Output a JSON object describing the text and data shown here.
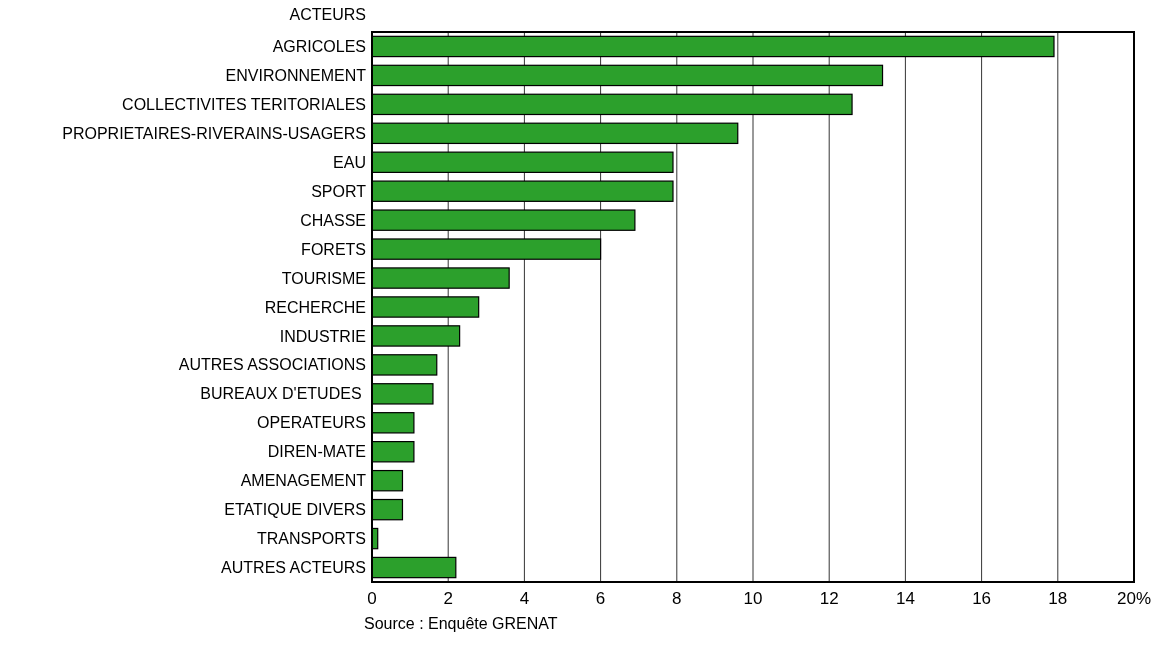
{
  "chart_data": {
    "type": "bar",
    "orientation": "horizontal",
    "ylabel": "ACTEURS",
    "categories": [
      "AGRICOLES",
      "ENVIRONNEMENT",
      "COLLECTIVITES TERITORIALES",
      "PROPRIETAIRES-RIVERAINS-USAGERS",
      "EAU",
      "SPORT",
      "CHASSE",
      "FORETS",
      "TOURISME",
      "RECHERCHE",
      "INDUSTRIE",
      "AUTRES ASSOCIATIONS",
      "BUREAUX D'ETUDES ",
      "OPERATEURS",
      "DIREN-MATE",
      "AMENAGEMENT",
      "ETATIQUE DIVERS",
      "TRANSPORTS",
      "AUTRES ACTEURS"
    ],
    "values": [
      17.9,
      13.4,
      12.6,
      9.6,
      7.9,
      7.9,
      6.9,
      6.0,
      3.6,
      2.8,
      2.3,
      1.7,
      1.6,
      1.1,
      1.1,
      0.8,
      0.8,
      0.15,
      2.2
    ],
    "color": "#2ca02c",
    "xlim": [
      0,
      20
    ],
    "xticks": [
      0,
      2,
      4,
      6,
      8,
      10,
      12,
      14,
      16,
      18,
      {
        "value": 20,
        "label": "20%"
      }
    ],
    "grid": "x",
    "annotations": [
      "Source : Enquête GRENAT"
    ]
  }
}
